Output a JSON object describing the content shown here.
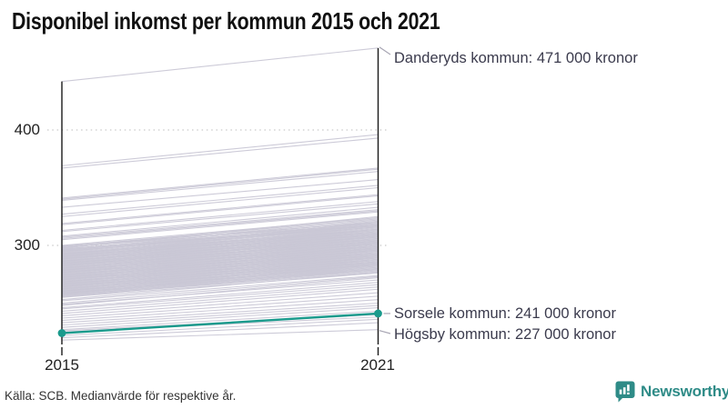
{
  "title": "Disponibel inkomst per kommun 2015 och 2021",
  "source": "Källa: SCB. Medianvärde för respektive år.",
  "branding": {
    "name": "Newsworthy",
    "color": "#2e8b87"
  },
  "chart_data": {
    "type": "line",
    "subtype": "slope-chart",
    "x_categories": [
      "2015",
      "2021"
    ],
    "y_ticks": [
      "300",
      "400"
    ],
    "y_unit": "tusen kronor per år",
    "ylim": [
      215,
      480
    ],
    "grid": "horizontal dotted gridlines at 300 and 400",
    "legend": "none",
    "line_color": "#c9c7d5",
    "axis_color": "#1a1a1a",
    "highlight_color": "#1a9a8c",
    "annotations": [
      {
        "id": "danderyd",
        "label": "Danderyds kommun: 471 000 kronor",
        "year": "2021",
        "value": 471
      },
      {
        "id": "sorsele",
        "label": "Sorsele kommun: 241 000 kronor",
        "year": "2021",
        "value": 241
      },
      {
        "id": "hogsby",
        "label": "Högsby kommun: 227 000 kronor",
        "year": "2021",
        "value": 227
      }
    ],
    "highlight": {
      "name": "Sorsele kommun",
      "v2015": 224,
      "v2021": 241
    },
    "lines": [
      [
        442,
        471
      ],
      [
        369,
        396
      ],
      [
        367,
        393
      ],
      [
        341,
        367
      ],
      [
        340,
        366
      ],
      [
        339,
        364
      ],
      [
        333,
        357
      ],
      [
        327,
        352
      ],
      [
        325,
        350
      ],
      [
        319,
        344
      ],
      [
        318,
        343
      ],
      [
        313,
        338
      ],
      [
        312,
        336
      ],
      [
        308,
        333
      ],
      [
        307,
        331
      ],
      [
        306,
        330
      ],
      [
        305,
        329
      ],
      [
        300,
        324
      ],
      [
        299.5,
        320
      ],
      [
        299,
        323
      ],
      [
        298.3,
        319
      ],
      [
        298,
        322
      ],
      [
        297.6,
        325
      ],
      [
        297,
        318
      ],
      [
        296.4,
        321
      ],
      [
        296,
        317
      ],
      [
        295.5,
        319
      ],
      [
        295,
        316
      ],
      [
        294.6,
        318
      ],
      [
        294,
        320
      ],
      [
        293.5,
        317
      ],
      [
        293,
        314
      ],
      [
        292.7,
        316
      ],
      [
        292.2,
        313
      ],
      [
        292,
        318
      ],
      [
        291.5,
        315
      ],
      [
        291,
        312
      ],
      [
        290.6,
        314
      ],
      [
        290.2,
        311
      ],
      [
        290,
        316
      ],
      [
        289.5,
        313
      ],
      [
        289,
        310
      ],
      [
        288.6,
        312
      ],
      [
        288.2,
        309
      ],
      [
        288,
        314
      ],
      [
        287.5,
        311
      ],
      [
        287,
        308
      ],
      [
        286.6,
        310
      ],
      [
        286.2,
        307
      ],
      [
        286,
        312
      ],
      [
        285.5,
        309
      ],
      [
        285,
        306
      ],
      [
        284.6,
        308
      ],
      [
        284.2,
        305
      ],
      [
        284,
        310
      ],
      [
        283.5,
        307
      ],
      [
        283,
        304
      ],
      [
        282.7,
        306
      ],
      [
        282.2,
        303
      ],
      [
        282,
        308
      ],
      [
        281.5,
        305
      ],
      [
        281,
        302
      ],
      [
        280.6,
        304
      ],
      [
        280.2,
        301
      ],
      [
        280,
        306
      ],
      [
        279.5,
        303
      ],
      [
        279,
        300
      ],
      [
        278.6,
        302
      ],
      [
        278.2,
        299
      ],
      [
        278,
        304
      ],
      [
        277.5,
        301
      ],
      [
        277,
        298
      ],
      [
        276.6,
        300
      ],
      [
        276.2,
        297
      ],
      [
        276,
        302
      ],
      [
        275.5,
        299
      ],
      [
        275,
        296
      ],
      [
        274.6,
        298
      ],
      [
        274.2,
        295
      ],
      [
        274,
        300
      ],
      [
        273.5,
        297
      ],
      [
        273,
        294
      ],
      [
        272.6,
        296
      ],
      [
        272.2,
        293
      ],
      [
        272,
        298
      ],
      [
        271.5,
        295
      ],
      [
        271,
        292
      ],
      [
        270.6,
        294
      ],
      [
        270.2,
        291
      ],
      [
        270,
        296
      ],
      [
        269.5,
        293
      ],
      [
        269,
        290
      ],
      [
        268.6,
        292
      ],
      [
        268.2,
        289
      ],
      [
        268,
        294
      ],
      [
        267.5,
        291
      ],
      [
        267,
        288
      ],
      [
        266.6,
        290
      ],
      [
        266.2,
        287
      ],
      [
        266,
        292
      ],
      [
        265.5,
        289
      ],
      [
        265,
        286
      ],
      [
        264.6,
        288
      ],
      [
        264.2,
        285
      ],
      [
        264,
        290
      ],
      [
        263.5,
        287
      ],
      [
        263,
        284
      ],
      [
        262.6,
        286
      ],
      [
        262.2,
        283
      ],
      [
        262,
        288
      ],
      [
        261.5,
        285
      ],
      [
        261,
        282
      ],
      [
        260.6,
        284
      ],
      [
        260.2,
        281
      ],
      [
        260,
        286
      ],
      [
        259.5,
        283
      ],
      [
        259,
        280
      ],
      [
        258.6,
        282
      ],
      [
        258.2,
        279
      ],
      [
        258,
        284
      ],
      [
        257.5,
        281
      ],
      [
        257,
        278
      ],
      [
        256.6,
        280
      ],
      [
        256.2,
        277
      ],
      [
        255.5,
        279
      ],
      [
        255,
        276
      ],
      [
        253,
        277
      ],
      [
        252,
        274
      ],
      [
        250,
        273
      ],
      [
        249,
        270
      ],
      [
        248,
        272
      ],
      [
        246,
        268
      ],
      [
        245,
        266
      ],
      [
        243,
        264
      ],
      [
        241,
        262
      ],
      [
        239,
        259
      ],
      [
        237,
        256
      ],
      [
        235,
        253
      ],
      [
        233,
        250
      ],
      [
        231,
        248
      ],
      [
        229,
        246
      ],
      [
        227,
        243
      ],
      [
        226,
        240
      ],
      [
        225,
        238
      ],
      [
        222,
        236
      ],
      [
        220,
        233
      ],
      [
        218,
        227
      ]
    ]
  }
}
